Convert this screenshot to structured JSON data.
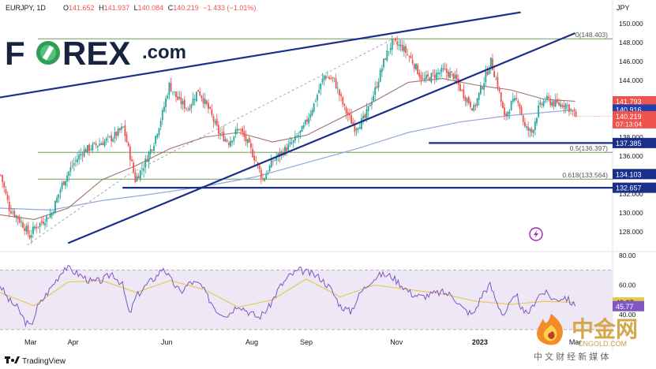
{
  "header": {
    "symbol": "EURJPY, 1D",
    "ohlc": [
      {
        "k": "O",
        "v": "141.652"
      },
      {
        "k": "H",
        "v": "141.937"
      },
      {
        "k": "L",
        "v": "140.084"
      },
      {
        "k": "C",
        "v": "140.219"
      }
    ],
    "change": "−1.433 (−1.01%)"
  },
  "logo": {
    "text_a": "F",
    "text_b": "REX",
    "text_c": ".com"
  },
  "currency_label": "JPY",
  "colors": {
    "up": "#26a69a",
    "down": "#ef5350",
    "trend": "#1a2f8a",
    "fib": "#5a8a46",
    "ma_brown": "#a0736a",
    "ma_blue": "#8fa8e0",
    "rsi": "#7e57c2",
    "rsi_ma": "#e6c84b",
    "rsi_band": "#ede7f6",
    "price_badge": "#ef5350",
    "blue_badge": "#1e40af",
    "fib_badge": "#1a2f8a"
  },
  "chart_data": [
    {
      "type": "candlestick",
      "title": "EURJPY, 1D",
      "ylim": [
        126,
        151
      ],
      "y_ticks": [
        128,
        130,
        132,
        134,
        136,
        138,
        140,
        142,
        144,
        146,
        148,
        150
      ],
      "y_tick_labels": [
        "128.000",
        "130.000",
        "132.000",
        "134.000",
        "136.000",
        "138.000",
        "140.000",
        "142.000",
        "144.000",
        "146.000",
        "148.000",
        "150.000"
      ],
      "x_labels": [
        "Mar",
        "Apr",
        "Jun",
        "Aug",
        "Sep",
        "Nov",
        "2023",
        "Mar"
      ],
      "close_path": [
        [
          0,
          134.0
        ],
        [
          5,
          130.5
        ],
        [
          10,
          129.5
        ],
        [
          14,
          128.5
        ],
        [
          17,
          127.5
        ],
        [
          20,
          128.5
        ],
        [
          24,
          129.0
        ],
        [
          30,
          130.0
        ],
        [
          36,
          133.0
        ],
        [
          42,
          135.0
        ],
        [
          48,
          136.5
        ],
        [
          54,
          137.0
        ],
        [
          60,
          137.5
        ],
        [
          66,
          138.0
        ],
        [
          72,
          139.0
        ],
        [
          76,
          136.0
        ],
        [
          79,
          133.5
        ],
        [
          84,
          135.0
        ],
        [
          90,
          137.5
        ],
        [
          95,
          140.5
        ],
        [
          99,
          143.5
        ],
        [
          104,
          142.0
        ],
        [
          110,
          141.0
        ],
        [
          116,
          143.0
        ],
        [
          122,
          141.0
        ],
        [
          128,
          138.5
        ],
        [
          134,
          137.5
        ],
        [
          140,
          139.0
        ],
        [
          146,
          137.0
        ],
        [
          150,
          135.5
        ],
        [
          154,
          133.5
        ],
        [
          160,
          135.5
        ],
        [
          166,
          136.5
        ],
        [
          172,
          137.5
        ],
        [
          178,
          139.0
        ],
        [
          184,
          141.5
        ],
        [
          190,
          144.5
        ],
        [
          196,
          144.0
        ],
        [
          202,
          141.0
        ],
        [
          208,
          139.0
        ],
        [
          214,
          140.0
        ],
        [
          220,
          143.0
        ],
        [
          226,
          146.5
        ],
        [
          230,
          148.0
        ],
        [
          236,
          147.5
        ],
        [
          242,
          146.0
        ],
        [
          248,
          144.0
        ],
        [
          254,
          144.5
        ],
        [
          260,
          145.0
        ],
        [
          266,
          144.5
        ],
        [
          272,
          142.5
        ],
        [
          278,
          141.0
        ],
        [
          284,
          144.0
        ],
        [
          288,
          146.0
        ],
        [
          292,
          143.5
        ],
        [
          296,
          140.0
        ],
        [
          300,
          141.5
        ],
        [
          304,
          142.0
        ],
        [
          308,
          139.0
        ],
        [
          312,
          138.5
        ],
        [
          316,
          141.0
        ],
        [
          320,
          142.0
        ],
        [
          326,
          141.5
        ],
        [
          332,
          141.5
        ],
        [
          338,
          140.2
        ]
      ],
      "moving_average_1": [
        [
          0,
          129.8
        ],
        [
          20,
          129.3
        ],
        [
          40,
          130.5
        ],
        [
          60,
          133.5
        ],
        [
          80,
          135.0
        ],
        [
          100,
          136.8
        ],
        [
          120,
          138.0
        ],
        [
          140,
          138.5
        ],
        [
          160,
          137.5
        ],
        [
          180,
          138.2
        ],
        [
          200,
          140.0
        ],
        [
          220,
          141.8
        ],
        [
          240,
          143.8
        ],
        [
          260,
          144.2
        ],
        [
          280,
          143.5
        ],
        [
          300,
          143.0
        ],
        [
          320,
          142.0
        ],
        [
          338,
          141.8
        ]
      ],
      "moving_average_2": [
        [
          0,
          130.5
        ],
        [
          30,
          130.3
        ],
        [
          60,
          131.3
        ],
        [
          90,
          132.0
        ],
        [
          120,
          132.8
        ],
        [
          150,
          133.8
        ],
        [
          180,
          135.3
        ],
        [
          210,
          136.8
        ],
        [
          240,
          138.5
        ],
        [
          270,
          139.6
        ],
        [
          300,
          140.3
        ],
        [
          338,
          140.9
        ]
      ],
      "trendlines": [
        {
          "from": [
            0,
            142.2
          ],
          "to": [
            306,
            151.2
          ]
        },
        {
          "from": [
            40,
            126.8
          ],
          "to": [
            338,
            149.0
          ]
        },
        {
          "from": [
            16,
            126.6
          ],
          "to": [
            75,
            134.0
          ],
          "dashed": true
        },
        {
          "from": [
            75,
            134.0
          ],
          "to": [
            231,
            148.4
          ],
          "dashed": true
        }
      ],
      "horizontal_lines": [
        {
          "value": 137.385,
          "from_x": 252,
          "label": "137.385"
        },
        {
          "value": 132.657,
          "from_x": 72,
          "label": "132.657"
        }
      ],
      "fib_levels": [
        {
          "label": "0(148.403)",
          "value": 148.403
        },
        {
          "label": "0.5(136.397)",
          "value": 136.397
        },
        {
          "label": "0.618(133.564)",
          "value": 133.564
        }
      ],
      "price_badges": [
        {
          "value": 141.793,
          "label": "141.793",
          "color": "#ef5350"
        },
        {
          "value": 140.916,
          "label": "140.916",
          "color": "#1e40af"
        },
        {
          "value": 140.219,
          "label": "140.219",
          "sub": "07:13:04",
          "color": "#ef5350"
        },
        {
          "value": 134.103,
          "label": "134.103",
          "color": "#1a2f8a"
        }
      ]
    },
    {
      "type": "line",
      "title": "RSI",
      "ylim": [
        30,
        82
      ],
      "y_ticks": [
        40,
        60,
        80
      ],
      "y_tick_labels": [
        "40.00",
        "60.00",
        "80.00"
      ],
      "band": [
        30,
        70
      ],
      "series": [
        {
          "values": [
            [
              0,
              60
            ],
            [
              5,
              50
            ],
            [
              10,
              45
            ],
            [
              15,
              35
            ],
            [
              18,
              32
            ],
            [
              22,
              45
            ],
            [
              28,
              55
            ],
            [
              34,
              65
            ],
            [
              38,
              72
            ],
            [
              42,
              70
            ],
            [
              48,
              66
            ],
            [
              54,
              62
            ],
            [
              60,
              63
            ],
            [
              66,
              68
            ],
            [
              72,
              60
            ],
            [
              76,
              40
            ],
            [
              80,
              52
            ],
            [
              86,
              60
            ],
            [
              92,
              66
            ],
            [
              96,
              72
            ],
            [
              100,
              64
            ],
            [
              106,
              55
            ],
            [
              112,
              62
            ],
            [
              118,
              60
            ],
            [
              122,
              52
            ],
            [
              128,
              42
            ],
            [
              134,
              40
            ],
            [
              140,
              47
            ],
            [
              146,
              42
            ],
            [
              152,
              38
            ],
            [
              158,
              45
            ],
            [
              164,
              58
            ],
            [
              170,
              66
            ],
            [
              176,
              70
            ],
            [
              182,
              68
            ],
            [
              188,
              65
            ],
            [
              194,
              58
            ],
            [
              200,
              46
            ],
            [
              206,
              42
            ],
            [
              212,
              55
            ],
            [
              218,
              63
            ],
            [
              224,
              67
            ],
            [
              230,
              66
            ],
            [
              236,
              60
            ],
            [
              242,
              54
            ],
            [
              248,
              52
            ],
            [
              254,
              54
            ],
            [
              260,
              55
            ],
            [
              266,
              53
            ],
            [
              272,
              44
            ],
            [
              278,
              40
            ],
            [
              284,
              55
            ],
            [
              288,
              60
            ],
            [
              292,
              48
            ],
            [
              296,
              40
            ],
            [
              300,
              48
            ],
            [
              304,
              52
            ],
            [
              308,
              40
            ],
            [
              312,
              43
            ],
            [
              316,
              53
            ],
            [
              320,
              55
            ],
            [
              326,
              50
            ],
            [
              332,
              52
            ],
            [
              338,
              45.77
            ]
          ]
        },
        {
          "values": [
            [
              0,
              55
            ],
            [
              20,
              46
            ],
            [
              40,
              62
            ],
            [
              60,
              63
            ],
            [
              80,
              55
            ],
            [
              100,
              63
            ],
            [
              120,
              57
            ],
            [
              140,
              45
            ],
            [
              160,
              50
            ],
            [
              180,
              64
            ],
            [
              200,
              52
            ],
            [
              220,
              60
            ],
            [
              240,
              57
            ],
            [
              260,
              54
            ],
            [
              280,
              49
            ],
            [
              300,
              47
            ],
            [
              320,
              49
            ],
            [
              338,
              48.27
            ]
          ]
        }
      ],
      "value_badges": [
        {
          "value": 48.27,
          "label": "48.27",
          "color": "#e6c84b"
        },
        {
          "value": 45.77,
          "label": "45.77",
          "color": "#7e57c2"
        }
      ]
    }
  ],
  "footer": {
    "brand": "TradingView"
  },
  "watermark": {
    "text": "中金网",
    "url": "CNGOLD.COM",
    "subtitle": "中 文 财 经 新 媒 体"
  }
}
